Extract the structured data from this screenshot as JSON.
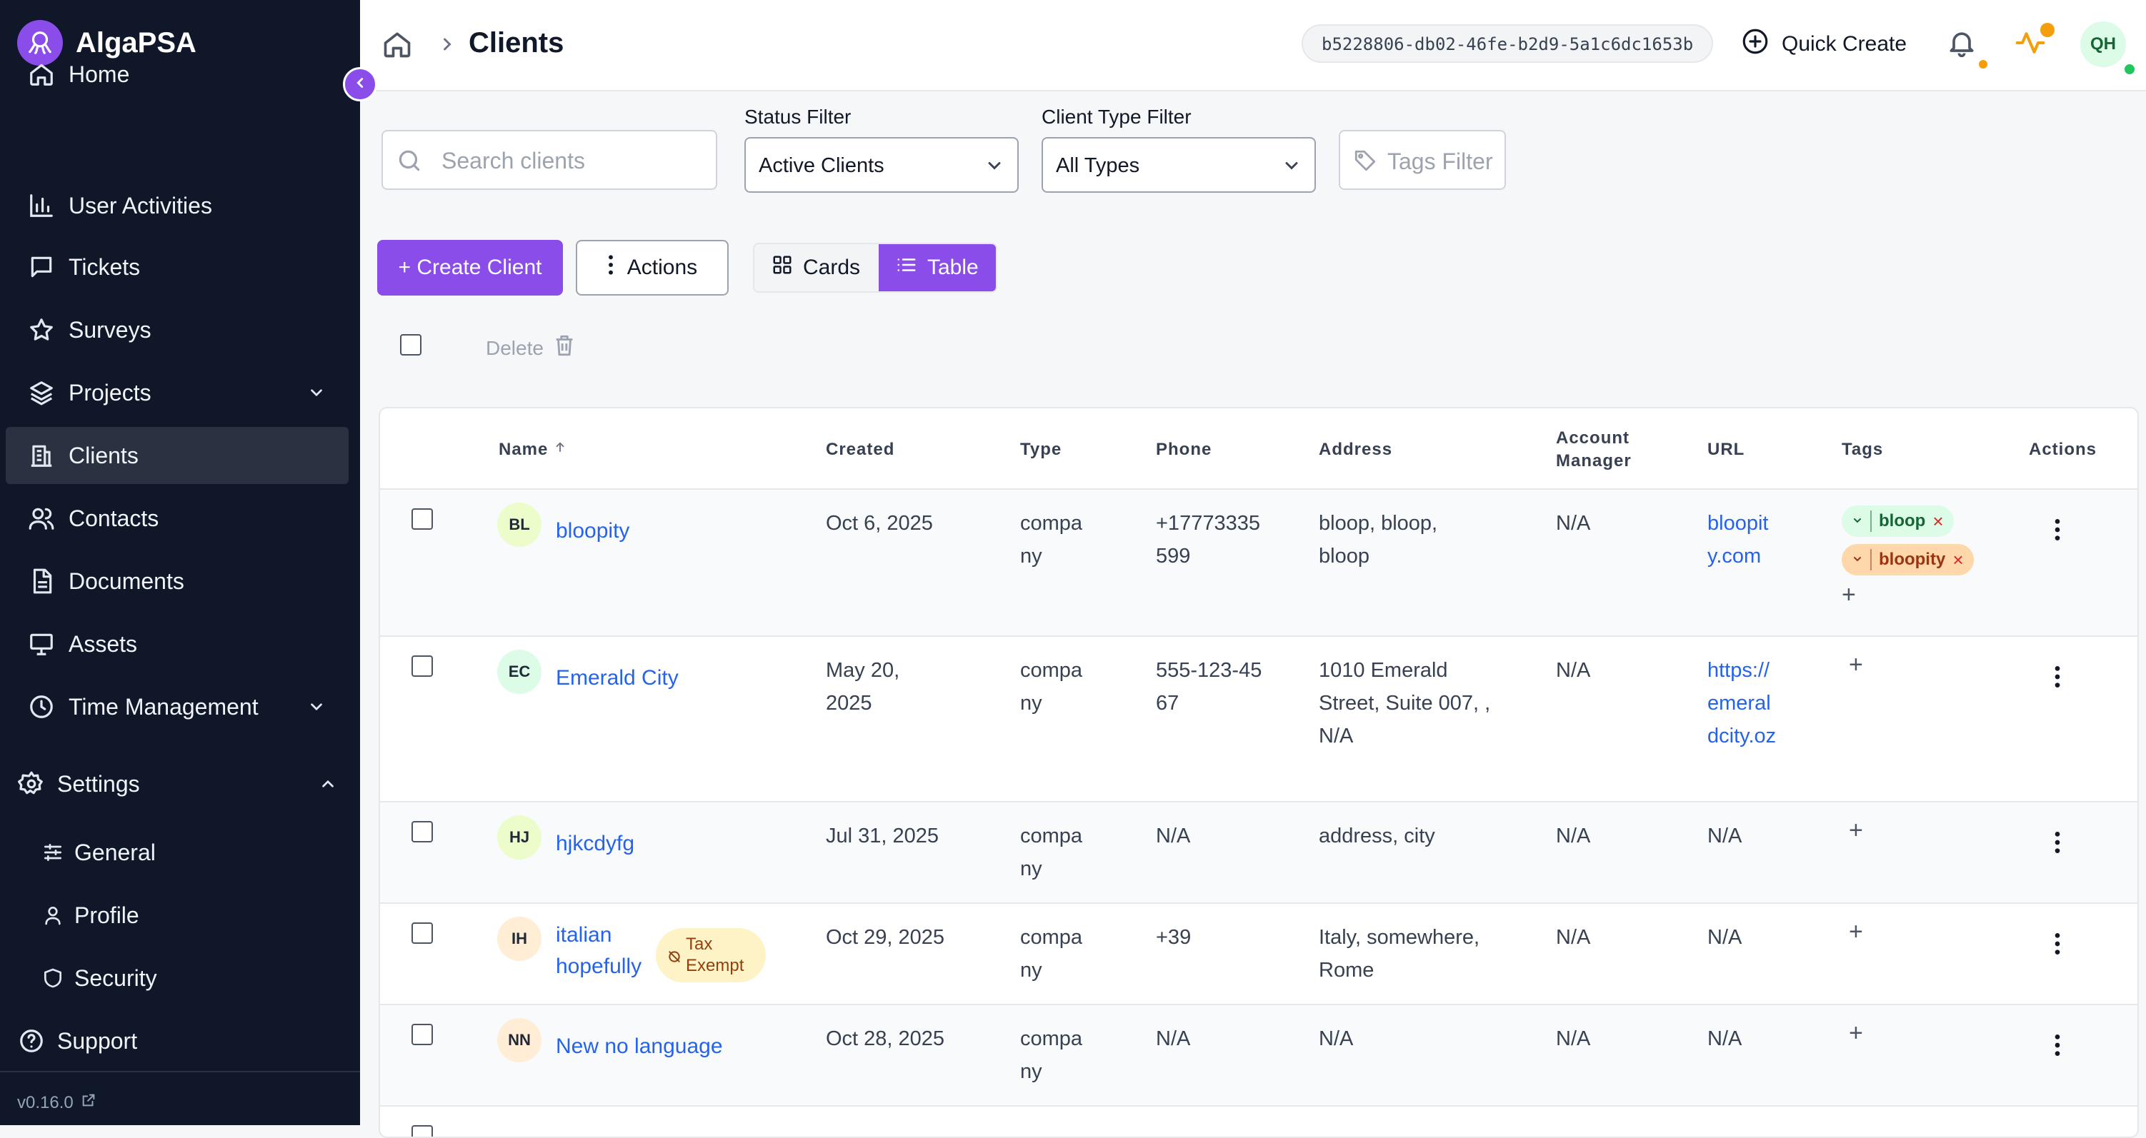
{
  "app": {
    "name": "AlgaPSA",
    "version": "v0.16.0"
  },
  "sidebar": {
    "items": [
      {
        "label": "Home"
      },
      {
        "label": "User Activities"
      },
      {
        "label": "Tickets"
      },
      {
        "label": "Surveys"
      },
      {
        "label": "Projects"
      },
      {
        "label": "Clients"
      },
      {
        "label": "Contacts"
      },
      {
        "label": "Documents"
      },
      {
        "label": "Assets"
      },
      {
        "label": "Time Management"
      }
    ],
    "settings": {
      "label": "Settings",
      "items": [
        {
          "label": "General"
        },
        {
          "label": "Profile"
        },
        {
          "label": "Security"
        }
      ]
    },
    "support": {
      "label": "Support"
    }
  },
  "header": {
    "title": "Clients",
    "tenant_id": "b5228806-db02-46fe-b2d9-5a1c6dc1653b",
    "quick_create": "Quick Create",
    "user_initials": "QH"
  },
  "filters": {
    "search_placeholder": "Search clients",
    "status_label": "Status Filter",
    "status_value": "Active Clients",
    "type_label": "Client Type Filter",
    "type_value": "All Types",
    "tags_placeholder": "Tags Filter"
  },
  "toolbar": {
    "create": "+ Create Client",
    "actions": "Actions",
    "cards": "Cards",
    "table": "Table",
    "delete": "Delete"
  },
  "table": {
    "columns": {
      "name": "Name",
      "created": "Created",
      "type": "Type",
      "phone": "Phone",
      "address": "Address",
      "account_manager": "Account Manager",
      "url": "URL",
      "tags": "Tags",
      "actions": "Actions"
    },
    "rows": [
      {
        "initials": "BL",
        "name": "bloopity",
        "created": "Oct 6, 2025",
        "type": "company",
        "phone": "+17773335599",
        "address": "bloop, bloop, bloop",
        "account_manager": "N/A",
        "url": "bloopity.com",
        "tags": [
          {
            "label": "bloop",
            "color": "green"
          },
          {
            "label": "bloopity",
            "color": "orange"
          }
        ]
      },
      {
        "initials": "EC",
        "name": "Emerald City",
        "created": "May 20, 2025",
        "type": "company",
        "phone": "555-123-4567",
        "address": "1010 Emerald Street, Suite 007, , N/A",
        "account_manager": "N/A",
        "url": "https://emeraldcity.oz",
        "tags": []
      },
      {
        "initials": "HJ",
        "name": "hjkcdyfg",
        "created": "Jul 31, 2025",
        "type": "company",
        "phone": "N/A",
        "address": "address, city",
        "account_manager": "N/A",
        "url": "N/A",
        "tags": []
      },
      {
        "initials": "IH",
        "name": "italian hopefully",
        "badge": "Tax Exempt",
        "created": "Oct 29, 2025",
        "type": "company",
        "phone": "+39",
        "address": "Italy, somewhere, Rome",
        "account_manager": "N/A",
        "url": "N/A",
        "tags": []
      },
      {
        "initials": "NN",
        "name": "New no language",
        "created": "Oct 28, 2025",
        "type": "company",
        "phone": "N/A",
        "address": "N/A",
        "account_manager": "N/A",
        "url": "N/A",
        "tags": []
      }
    ]
  },
  "colors": {
    "accent": "#8a4dea",
    "sidebar_bg": "#0f1729",
    "link": "#2563eb",
    "notification_dot": "#f59e0b",
    "online_dot": "#22c55e"
  }
}
